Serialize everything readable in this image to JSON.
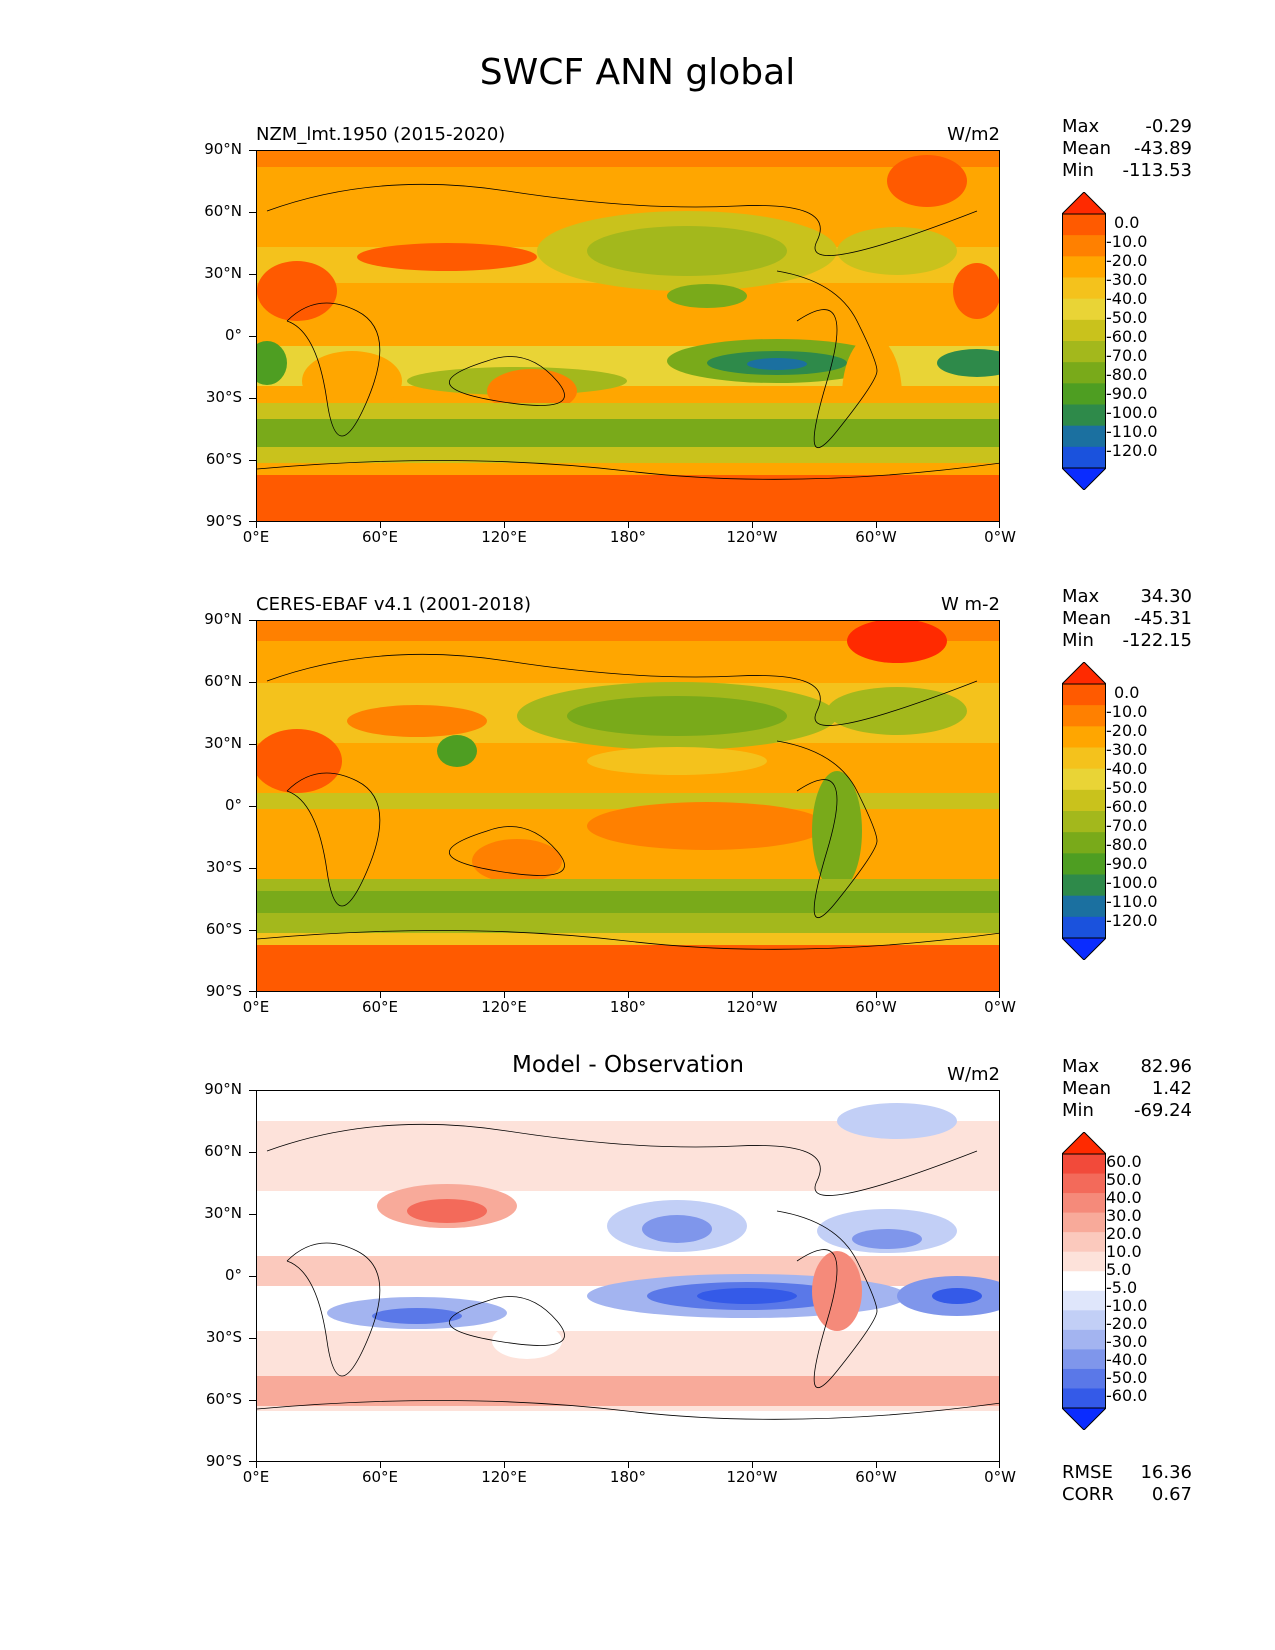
{
  "figure_title": "SWCF ANN global",
  "lat_ticks": [
    "90°N",
    "60°N",
    "30°N",
    "0°",
    "30°S",
    "60°S",
    "90°S"
  ],
  "lon_ticks": [
    "0°E",
    "60°E",
    "120°E",
    "180°",
    "120°W",
    "60°W",
    "0°W"
  ],
  "panels": [
    {
      "title": "NZM_lmt.1950 (2015-2020)",
      "units": "W/m2",
      "stats": {
        "max_label": "Max",
        "max": "-0.29",
        "mean_label": "Mean",
        "mean": "-43.89",
        "min_label": "Min",
        "min": "-113.53"
      },
      "colorbar": {
        "labels": [
          "0.0",
          "-10.0",
          "-20.0",
          "-30.0",
          "-40.0",
          "-50.0",
          "-60.0",
          "-70.0",
          "-80.0",
          "-90.0",
          "-100.0",
          "-110.0",
          "-120.0"
        ],
        "colors": [
          "#ff2a00",
          "#ff5a00",
          "#ff8000",
          "#ffa600",
          "#f4c21c",
          "#e9d436",
          "#c9c21c",
          "#a3b81c",
          "#79aa1a",
          "#4e9e22",
          "#2e8a4a",
          "#1b70a0",
          "#1a52dd",
          "#0a2cff"
        ]
      }
    },
    {
      "title": "CERES-EBAF v4.1 (2001-2018)",
      "units": "W m-2",
      "stats": {
        "max_label": "Max",
        "max": "34.30",
        "mean_label": "Mean",
        "mean": "-45.31",
        "min_label": "Min",
        "min": "-122.15"
      },
      "colorbar": {
        "labels": [
          "0.0",
          "-10.0",
          "-20.0",
          "-30.0",
          "-40.0",
          "-50.0",
          "-60.0",
          "-70.0",
          "-80.0",
          "-90.0",
          "-100.0",
          "-110.0",
          "-120.0"
        ],
        "colors": [
          "#ff2a00",
          "#ff5a00",
          "#ff8000",
          "#ffa600",
          "#f4c21c",
          "#e9d436",
          "#c9c21c",
          "#a3b81c",
          "#79aa1a",
          "#4e9e22",
          "#2e8a4a",
          "#1b70a0",
          "#1a52dd",
          "#0a2cff"
        ]
      }
    },
    {
      "title": "Model - Observation",
      "units": "W/m2",
      "stats": {
        "max_label": "Max",
        "max": "82.96",
        "mean_label": "Mean",
        "mean": "1.42",
        "min_label": "Min",
        "min": "-69.24"
      },
      "colorbar": {
        "labels": [
          "60.0",
          "50.0",
          "40.0",
          "30.0",
          "20.0",
          "10.0",
          "5.0",
          "-5.0",
          "-10.0",
          "-20.0",
          "-30.0",
          "-40.0",
          "-50.0",
          "-60.0"
        ],
        "colors": [
          "#ff2a00",
          "#f24a3a",
          "#f36a5a",
          "#f58a7a",
          "#f8aa9a",
          "#fbc9bd",
          "#fde2da",
          "#ffffff",
          "#dfe6fb",
          "#c2cff6",
          "#a3b4f0",
          "#7f96eb",
          "#5a78e8",
          "#345ae8",
          "#0a2cff"
        ]
      },
      "extra_stats": {
        "rmse_label": "RMSE",
        "rmse": "16.36",
        "corr_label": "CORR",
        "corr": "0.67"
      }
    }
  ]
}
